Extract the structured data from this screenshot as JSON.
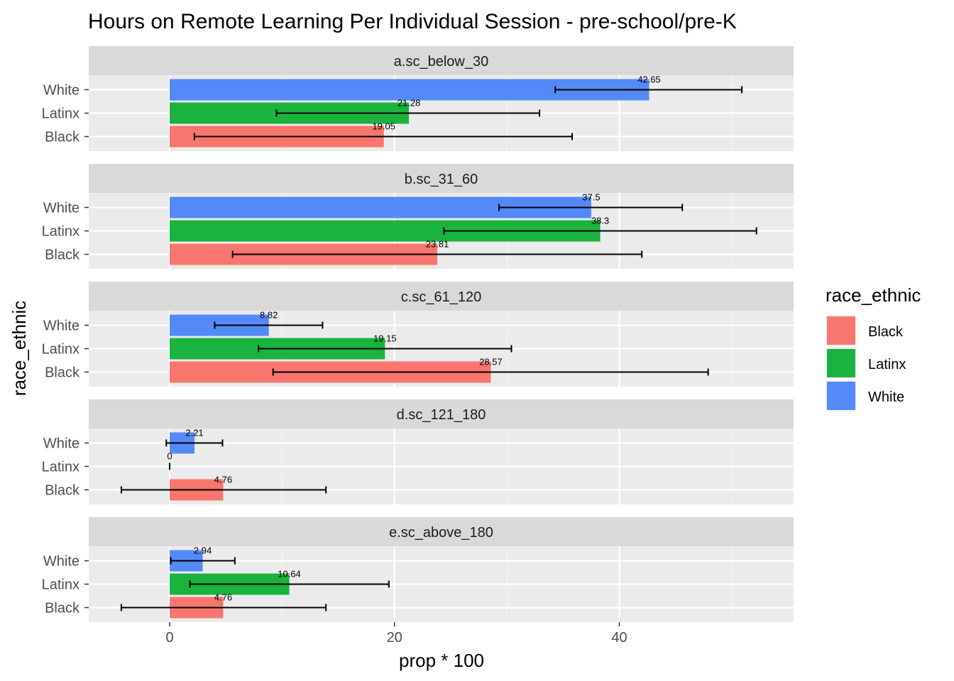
{
  "chart_data": {
    "type": "bar",
    "orientation": "horizontal",
    "title": "Hours on Remote Learning Per Individual Session - pre-school/pre-K",
    "xlabel": "prop * 100",
    "ylabel": "race_ethnic",
    "xlim": [
      -7.2,
      55.5
    ],
    "x_ticks": [
      0,
      20,
      40
    ],
    "grid": true,
    "categories": [
      "White",
      "Latinx",
      "Black"
    ],
    "legend": {
      "title": "race_ethnic",
      "position": "right",
      "entries": [
        "Black",
        "Latinx",
        "White"
      ]
    },
    "colors": {
      "Black": "#F8766D",
      "Latinx": "#19B33E",
      "White": "#548AF7"
    },
    "panels": [
      {
        "name": "a.sc_below_30",
        "bars": [
          {
            "category": "White",
            "value": 42.65,
            "label": "42.65",
            "err_low": 34.3,
            "err_high": 50.9
          },
          {
            "category": "Latinx",
            "value": 21.28,
            "label": "21.28",
            "err_low": 9.5,
            "err_high": 32.9
          },
          {
            "category": "Black",
            "value": 19.05,
            "label": "19.05",
            "err_low": 2.2,
            "err_high": 35.8
          }
        ]
      },
      {
        "name": "b.sc_31_60",
        "bars": [
          {
            "category": "White",
            "value": 37.5,
            "label": "37.5",
            "err_low": 29.3,
            "err_high": 45.6
          },
          {
            "category": "Latinx",
            "value": 38.3,
            "label": "38.3",
            "err_low": 24.4,
            "err_high": 52.2
          },
          {
            "category": "Black",
            "value": 23.81,
            "label": "23.81",
            "err_low": 5.6,
            "err_high": 42.0
          }
        ]
      },
      {
        "name": "c.sc_61_120",
        "bars": [
          {
            "category": "White",
            "value": 8.82,
            "label": "8.82",
            "err_low": 4.0,
            "err_high": 13.6
          },
          {
            "category": "Latinx",
            "value": 19.15,
            "label": "19.15",
            "err_low": 7.9,
            "err_high": 30.4
          },
          {
            "category": "Black",
            "value": 28.57,
            "label": "28.57",
            "err_low": 9.2,
            "err_high": 47.9
          }
        ]
      },
      {
        "name": "d.sc_121_180",
        "bars": [
          {
            "category": "White",
            "value": 2.21,
            "label": "2.21",
            "err_low": -0.3,
            "err_high": 4.7
          },
          {
            "category": "Latinx",
            "value": 0,
            "label": "0",
            "err_low": 0,
            "err_high": 0
          },
          {
            "category": "Black",
            "value": 4.76,
            "label": "4.76",
            "err_low": -4.3,
            "err_high": 13.9
          }
        ]
      },
      {
        "name": "e.sc_above_180",
        "bars": [
          {
            "category": "White",
            "value": 2.94,
            "label": "2.94",
            "err_low": 0.1,
            "err_high": 5.8
          },
          {
            "category": "Latinx",
            "value": 10.64,
            "label": "10.64",
            "err_low": 1.8,
            "err_high": 19.5
          },
          {
            "category": "Black",
            "value": 4.76,
            "label": "4.76",
            "err_low": -4.3,
            "err_high": 13.9
          }
        ]
      }
    ]
  }
}
